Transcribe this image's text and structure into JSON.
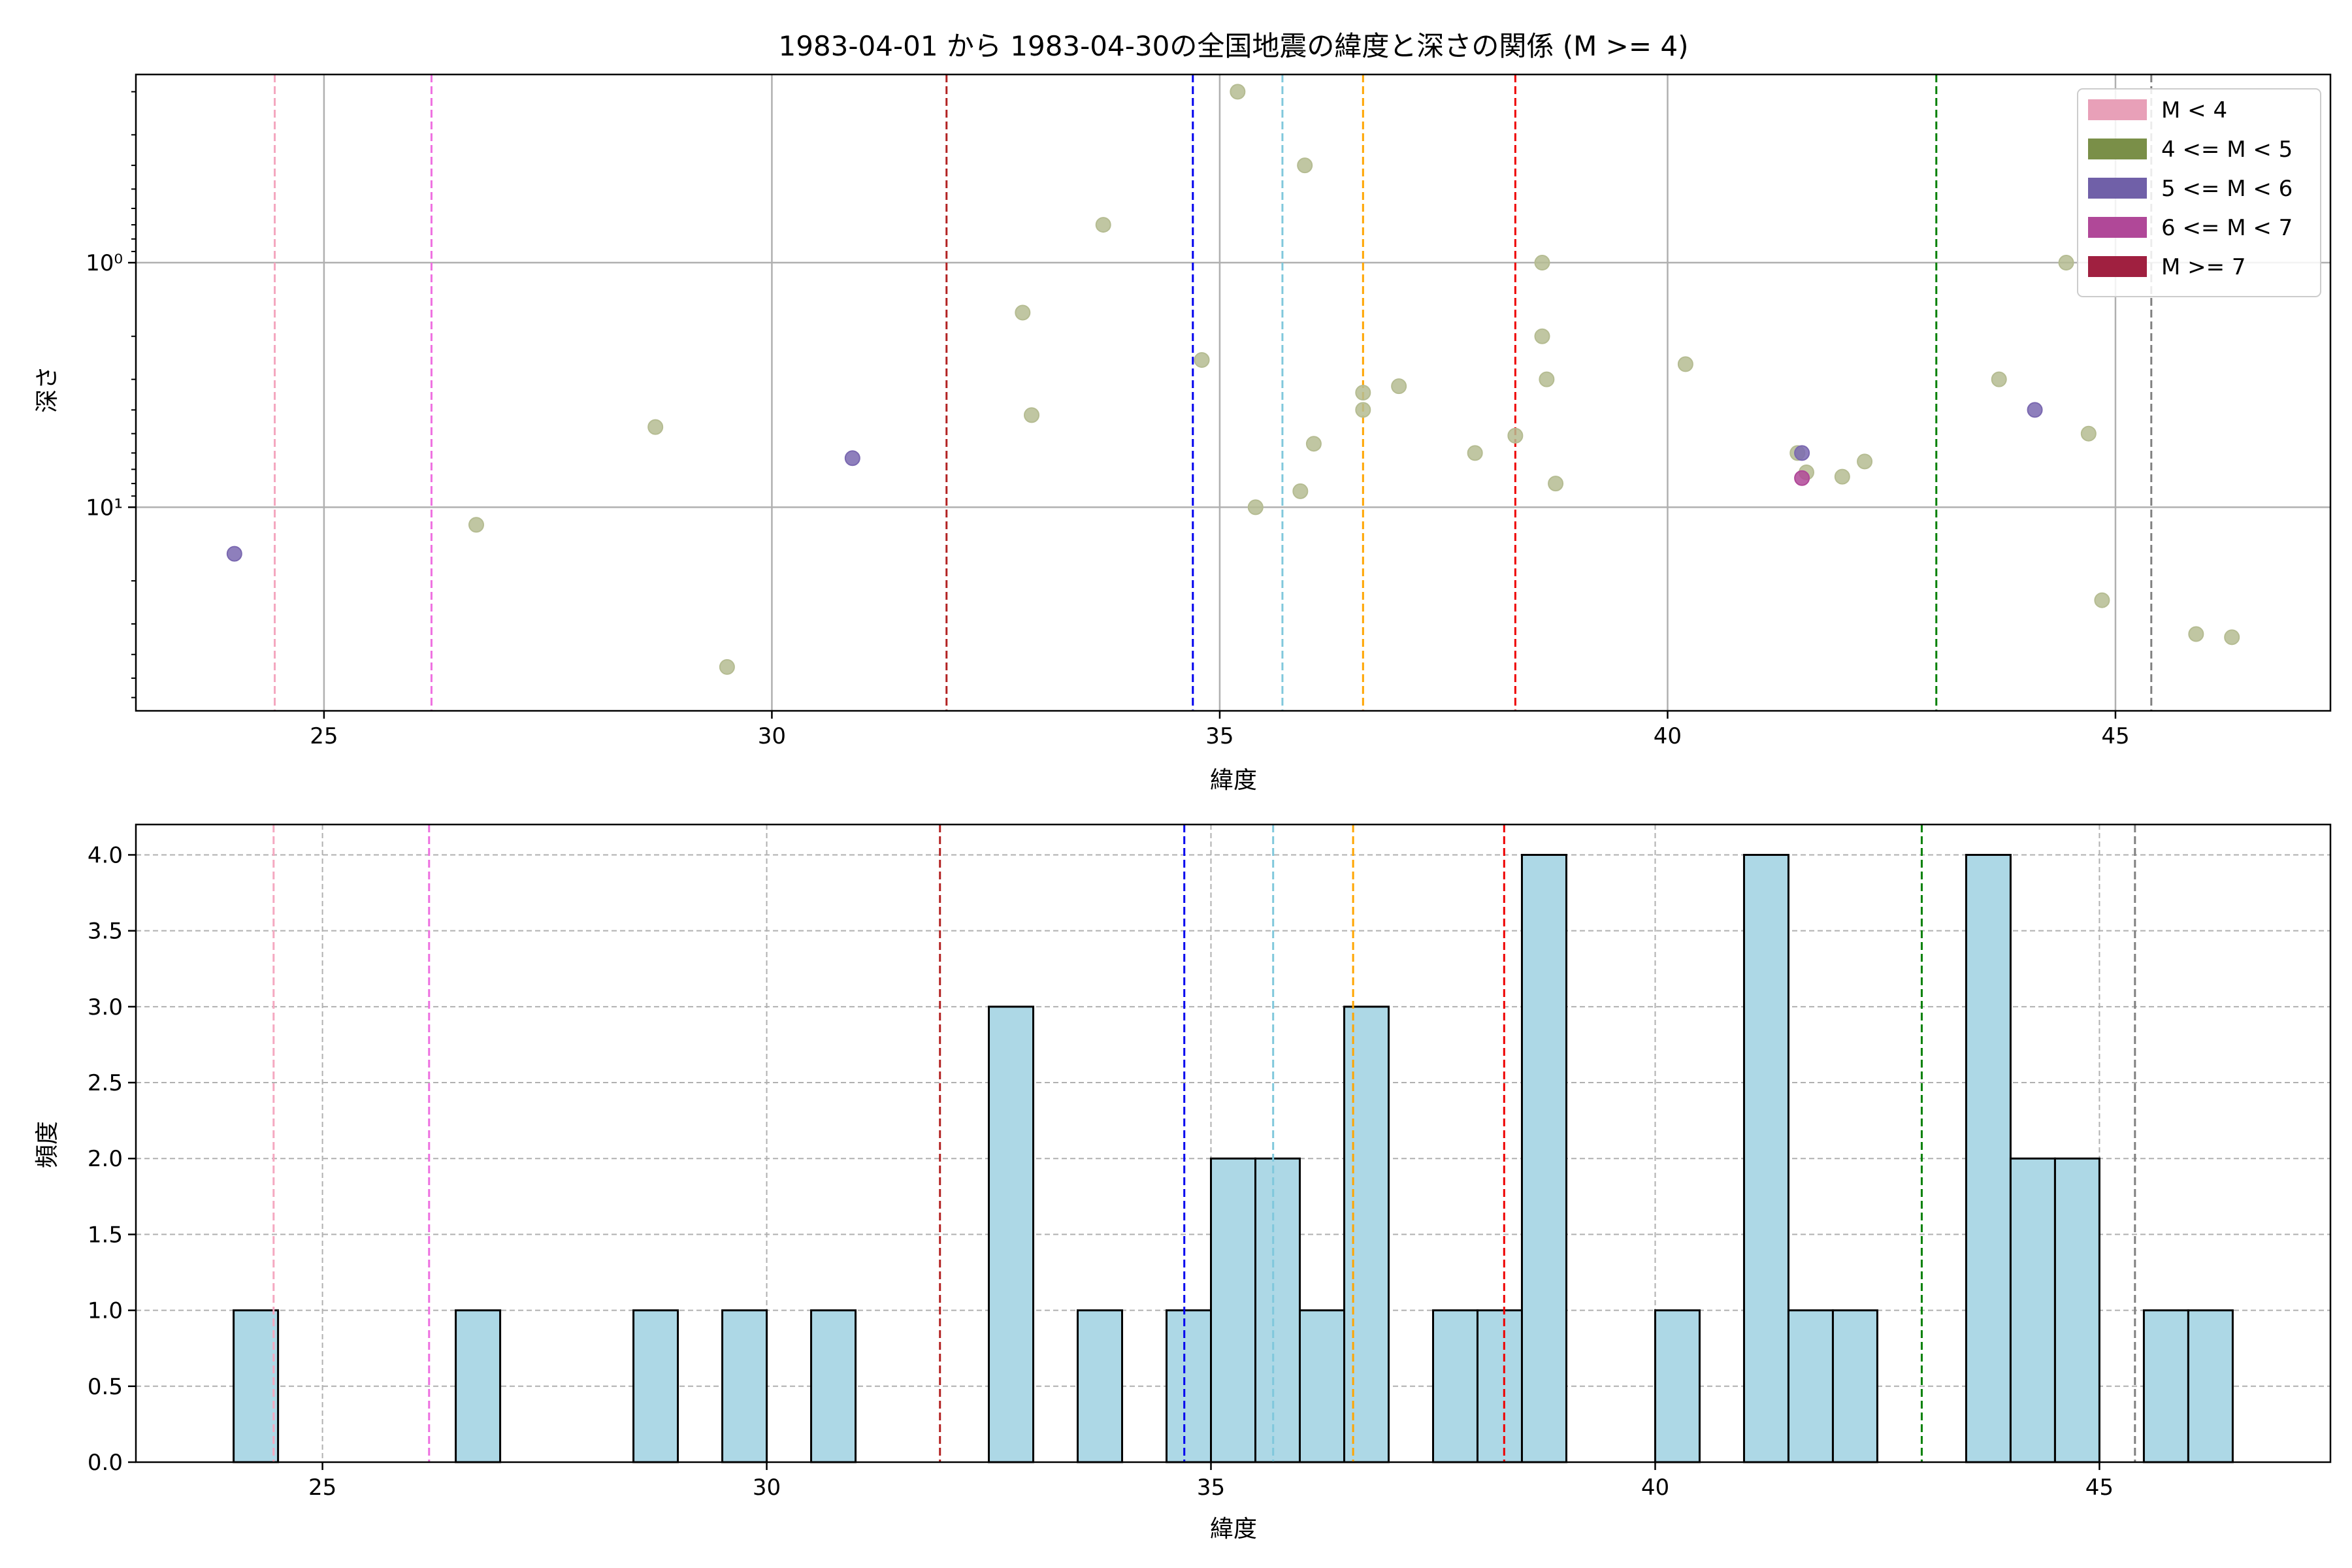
{
  "figure_title": "1983-04-01 から 1983-04-30の全国地震の緯度と深さの関係 (M >= 4)",
  "chart_data": [
    {
      "type": "scatter",
      "title": "1983-04-01 から 1983-04-30の全国地震の緯度と深さの関係 (M >= 4)",
      "xlabel": "緯度",
      "ylabel": "深さ",
      "xlim": [
        22.9,
        47.4
      ],
      "ylim": [
        68,
        0.17
      ],
      "yscale": "log",
      "y_inverted": true,
      "grid": true,
      "legend_placement": "top-right",
      "xticks": [
        25,
        30,
        35,
        40,
        45
      ],
      "xtick_labels": [
        "25",
        "30",
        "35",
        "40",
        "45"
      ],
      "yticks": [
        1,
        10
      ],
      "ytick_labels": [
        "10⁰",
        "10¹"
      ],
      "legend": [
        {
          "label": "M < 4",
          "color": "#e8a0b8"
        },
        {
          "label": "4 <= M < 5",
          "color": "#7a8f48"
        },
        {
          "label": "5 <= M < 6",
          "color": "#7060a8"
        },
        {
          "label": "6 <= M < 7",
          "color": "#b04898"
        },
        {
          "label": "M >= 7",
          "color": "#a02040"
        }
      ],
      "series": [
        {
          "name": "4 <= M < 5",
          "color": "#b5bc92",
          "points": [
            [
              26.7,
              11.8
            ],
            [
              28.7,
              4.7
            ],
            [
              29.5,
              45
            ],
            [
              32.8,
              1.6
            ],
            [
              32.9,
              4.2
            ],
            [
              33.7,
              0.7
            ],
            [
              34.8,
              2.5
            ],
            [
              35.2,
              0.2
            ],
            [
              35.4,
              10
            ],
            [
              35.9,
              8.6
            ],
            [
              35.95,
              0.4
            ],
            [
              36.05,
              5.5
            ],
            [
              36.6,
              3.4
            ],
            [
              36.6,
              4
            ],
            [
              37.0,
              3.2
            ],
            [
              37.85,
              6
            ],
            [
              38.3,
              5.1
            ],
            [
              38.6,
              2
            ],
            [
              38.6,
              1
            ],
            [
              38.65,
              3
            ],
            [
              38.75,
              8
            ],
            [
              40.2,
              2.6
            ],
            [
              41.45,
              6
            ],
            [
              41.55,
              7.2
            ],
            [
              41.95,
              7.5
            ],
            [
              42.2,
              6.5
            ],
            [
              43.7,
              3
            ],
            [
              44.45,
              1
            ],
            [
              44.7,
              5
            ],
            [
              44.85,
              24
            ],
            [
              45.9,
              33
            ],
            [
              46.3,
              34
            ]
          ]
        },
        {
          "name": "5 <= M < 6",
          "color": "#7a68b0",
          "points": [
            [
              24.0,
              15.5
            ],
            [
              30.9,
              6.3
            ],
            [
              44.1,
              4
            ],
            [
              41.5,
              6
            ]
          ]
        },
        {
          "name": "6 <= M < 7",
          "color": "#b04898",
          "points": [
            [
              41.5,
              7.6
            ]
          ]
        }
      ],
      "reference_lines": [
        {
          "x": 24.45,
          "color": "#f4a8c0"
        },
        {
          "x": 26.2,
          "color": "#ee70e0"
        },
        {
          "x": 31.95,
          "color": "#b22222"
        },
        {
          "x": 34.7,
          "color": "#0000ee"
        },
        {
          "x": 35.7,
          "color": "#80c8dc"
        },
        {
          "x": 36.6,
          "color": "#ffa500"
        },
        {
          "x": 38.3,
          "color": "#ee0000"
        },
        {
          "x": 43.0,
          "color": "#008000"
        },
        {
          "x": 45.4,
          "color": "#808080"
        }
      ]
    },
    {
      "type": "bar",
      "subtype": "histogram",
      "xlabel": "緯度",
      "ylabel": "頻度",
      "xlim": [
        22.9,
        47.6
      ],
      "ylim": [
        0,
        4.2
      ],
      "grid": true,
      "bar_color": "#add8e6",
      "bar_edge_color": "#000000",
      "bin_width": 0.5,
      "xticks": [
        25,
        30,
        35,
        40,
        45
      ],
      "xtick_labels": [
        "25",
        "30",
        "35",
        "40",
        "45"
      ],
      "yticks": [
        0,
        0.5,
        1,
        1.5,
        2,
        2.5,
        3,
        3.5,
        4
      ],
      "ytick_labels": [
        "0.0",
        "0.5",
        "1.0",
        "1.5",
        "2.0",
        "2.5",
        "3.0",
        "3.5",
        "4.0"
      ],
      "bins": [
        {
          "start": 24.0,
          "count": 1
        },
        {
          "start": 26.5,
          "count": 1
        },
        {
          "start": 28.5,
          "count": 1
        },
        {
          "start": 29.5,
          "count": 1
        },
        {
          "start": 30.5,
          "count": 1
        },
        {
          "start": 32.5,
          "count": 3
        },
        {
          "start": 33.5,
          "count": 1
        },
        {
          "start": 34.5,
          "count": 1
        },
        {
          "start": 35.0,
          "count": 2
        },
        {
          "start": 35.5,
          "count": 2
        },
        {
          "start": 36.0,
          "count": 1
        },
        {
          "start": 36.5,
          "count": 3
        },
        {
          "start": 37.5,
          "count": 1
        },
        {
          "start": 38.0,
          "count": 1
        },
        {
          "start": 38.5,
          "count": 4
        },
        {
          "start": 40.0,
          "count": 1
        },
        {
          "start": 41.0,
          "count": 4
        },
        {
          "start": 41.5,
          "count": 1
        },
        {
          "start": 42.0,
          "count": 1
        },
        {
          "start": 43.5,
          "count": 4
        },
        {
          "start": 44.0,
          "count": 2
        },
        {
          "start": 44.5,
          "count": 2
        },
        {
          "start": 45.5,
          "count": 1
        },
        {
          "start": 46.0,
          "count": 1
        }
      ],
      "reference_lines": [
        {
          "x": 24.45,
          "color": "#f4a8c0"
        },
        {
          "x": 26.2,
          "color": "#ee70e0"
        },
        {
          "x": 31.95,
          "color": "#b22222"
        },
        {
          "x": 34.7,
          "color": "#0000ee"
        },
        {
          "x": 35.7,
          "color": "#80c8dc"
        },
        {
          "x": 36.6,
          "color": "#ffa500"
        },
        {
          "x": 38.3,
          "color": "#ee0000"
        },
        {
          "x": 43.0,
          "color": "#008000"
        },
        {
          "x": 45.4,
          "color": "#808080"
        }
      ]
    }
  ]
}
